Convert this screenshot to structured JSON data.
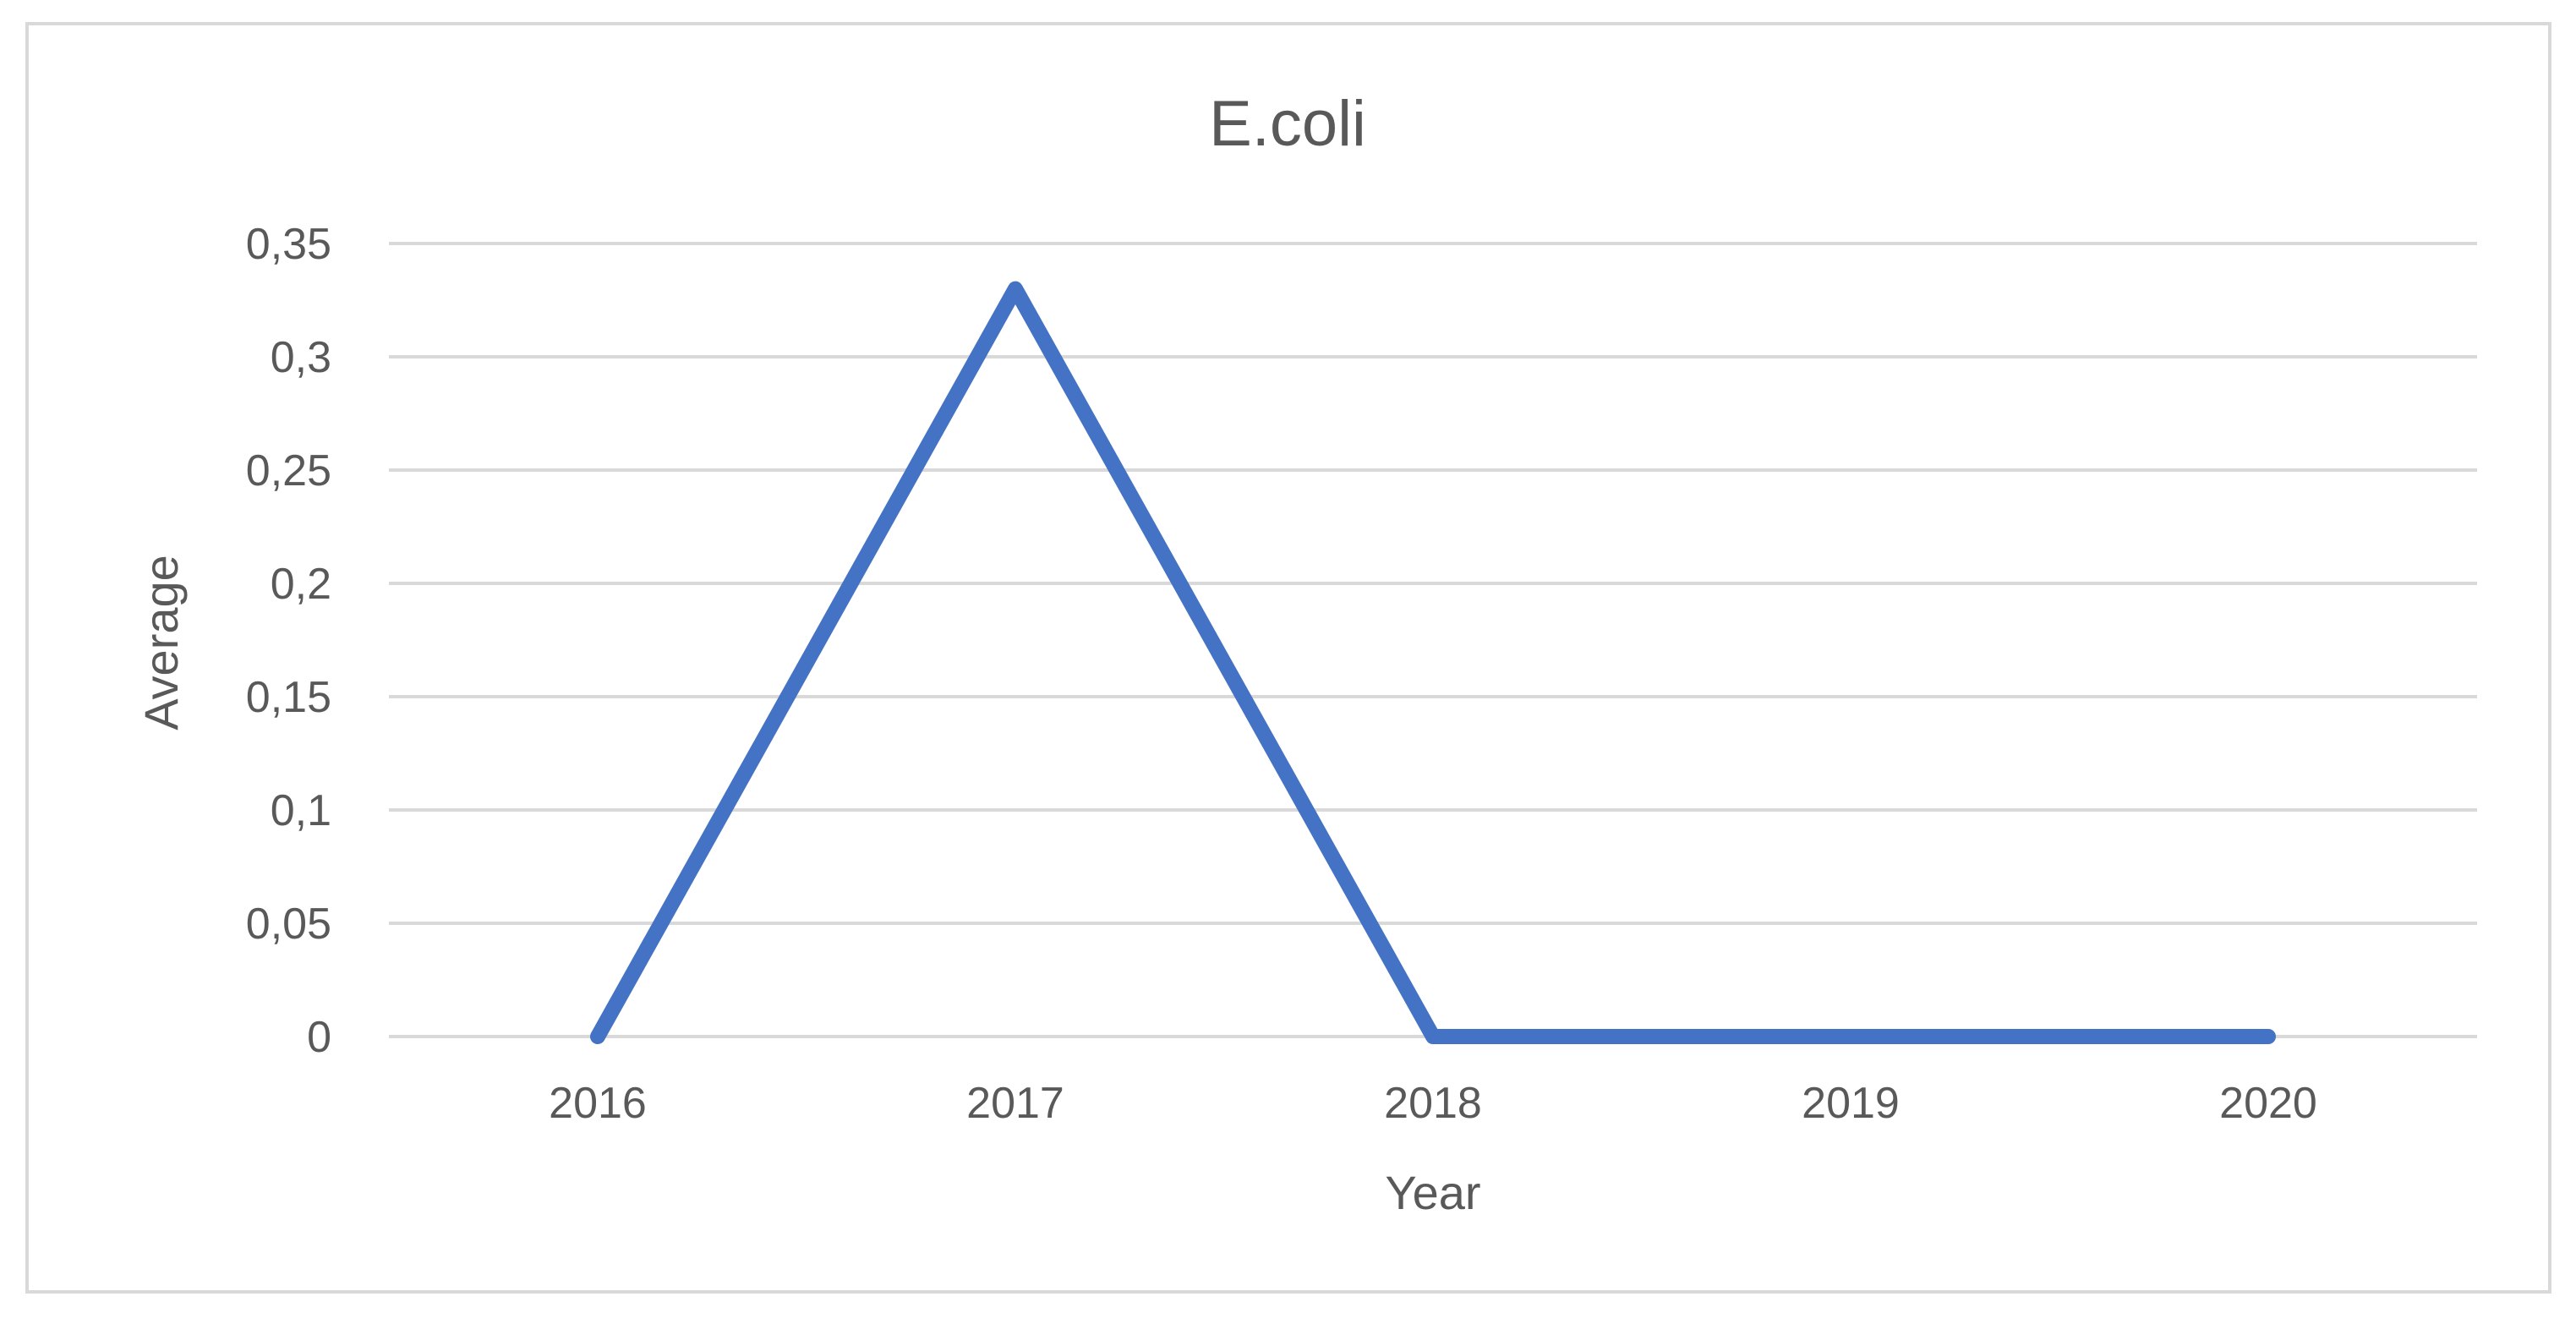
{
  "chart_data": {
    "type": "line",
    "title": "E.coli",
    "xlabel": "Year",
    "ylabel": "Average",
    "categories": [
      "2016",
      "2017",
      "2018",
      "2019",
      "2020"
    ],
    "series": [
      {
        "values": [
          0,
          0.33,
          0,
          0,
          0
        ],
        "color": "#4472c4"
      }
    ],
    "ylim": [
      0,
      0.35
    ],
    "y_ticks": [
      0,
      0.05,
      0.1,
      0.15,
      0.2,
      0.25,
      0.3,
      0.35
    ],
    "y_tick_labels": [
      "0",
      "0,05",
      "0,1",
      "0,15",
      "0,2",
      "0,25",
      "0,3",
      "0,35"
    ],
    "grid": true,
    "legend": "none"
  }
}
